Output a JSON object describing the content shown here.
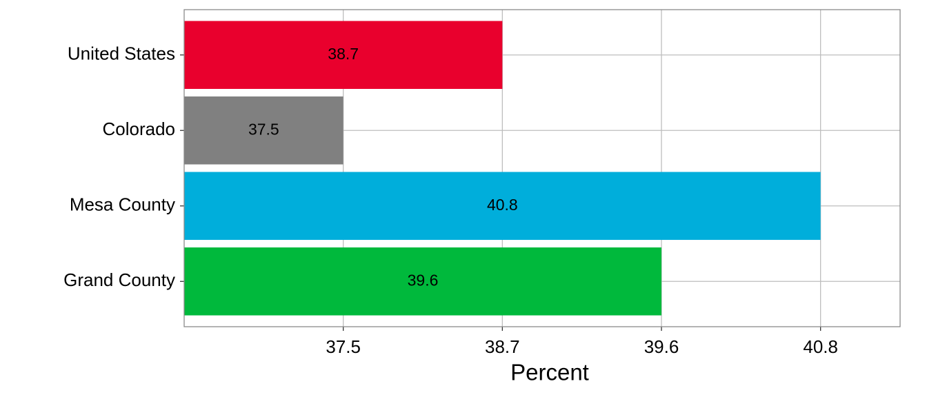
{
  "chart_data": {
    "type": "bar",
    "orientation": "horizontal",
    "categories": [
      "United States",
      "Colorado",
      "Mesa County",
      "Grand County"
    ],
    "values": [
      38.7,
      37.5,
      40.8,
      39.6
    ],
    "colors": [
      "#e9002d",
      "#808080",
      "#00aedb",
      "#00b93c"
    ],
    "x_label": "Percent",
    "xscale": "discrete",
    "xticks": [
      37.5,
      38.7,
      39.6,
      40.8
    ],
    "grid": true
  }
}
